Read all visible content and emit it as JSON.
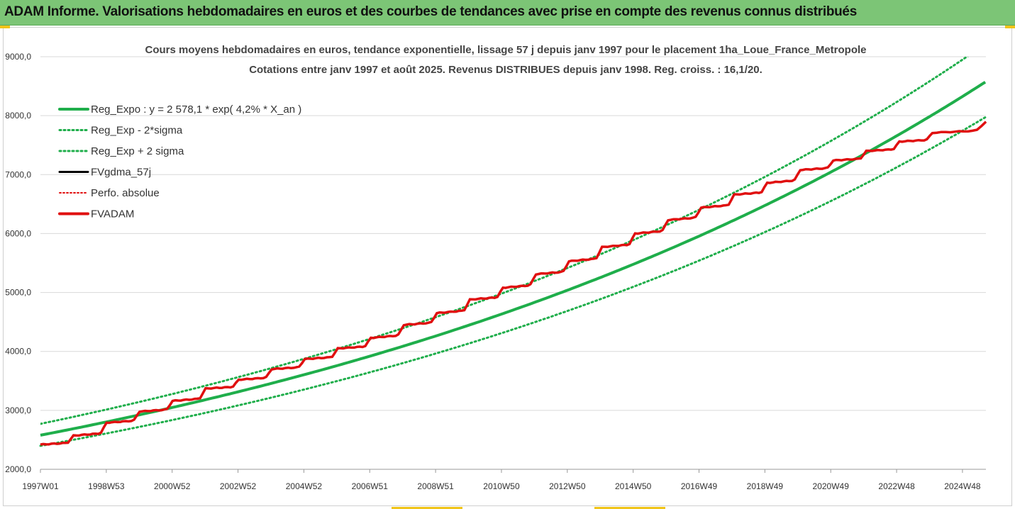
{
  "banner": {
    "title": "ADAM Informe. Valorisations hebdomadaires en euros et des courbes de tendances avec prise en compte des revenus connus distribués"
  },
  "colors": {
    "banner": "#7cc576",
    "regression": "#1fae4b",
    "fvgdma": "#000000",
    "perfo": "#e01010",
    "fvadam": "#e01010"
  },
  "chart_data": {
    "type": "line",
    "title": "Cours moyens hebdomadaires en euros, tendance exponentielle, lissage 57 j depuis janv 1997 pour le placement 1ha_Loue_France_Metropole",
    "subtitle": "Cotations entre janv 1997 et août 2025. Revenus DISTRIBUES depuis janv 1998. Reg. croiss. : 16,1/20.",
    "xlabel": "",
    "ylabel": "",
    "ylim": [
      2000,
      9000
    ],
    "yticks": [
      "2000,0",
      "3000,0",
      "4000,0",
      "5000,0",
      "6000,0",
      "7000,0",
      "8000,0",
      "9000,0"
    ],
    "xticks": [
      "1997W01",
      "1998W53",
      "2000W52",
      "2002W52",
      "2004W52",
      "2006W51",
      "2008W51",
      "2010W50",
      "2012W50",
      "2014W50",
      "2016W49",
      "2018W49",
      "2020W49",
      "2022W48",
      "2024W48"
    ],
    "x_range": [
      1997.0,
      2025.62
    ],
    "grid": true,
    "legend_position": "top-left",
    "regression": {
      "a": 2578.1,
      "rate": 0.042,
      "sigma_factor": 1.075
    },
    "series": [
      {
        "name": "Reg_Expo : y = 2 578,1 * exp( 4,2% *  X_an )",
        "style": "solid-green"
      },
      {
        "name": "Reg_Exp - 2*sigma",
        "style": "dotted-green"
      },
      {
        "name": "Reg_Exp + 2 sigma",
        "style": "dotted-green"
      },
      {
        "name": "FVgdma_57j",
        "style": "solid-black"
      },
      {
        "name": "Perfo. absolue",
        "style": "dotted-red"
      },
      {
        "name": "FVADAM",
        "style": "solid-red",
        "x": [
          1997.0,
          1998.0,
          1999.0,
          2000.0,
          2001.0,
          2002.0,
          2003.0,
          2004.0,
          2005.0,
          2006.0,
          2007.0,
          2008.0,
          2009.0,
          2010.0,
          2011.0,
          2012.0,
          2013.0,
          2014.0,
          2015.0,
          2016.0,
          2017.0,
          2018.0,
          2019.0,
          2020.0,
          2021.0,
          2022.0,
          2023.0,
          2024.0,
          2025.62
        ],
        "values": [
          2420,
          2570,
          2790,
          2980,
          3160,
          3370,
          3520,
          3700,
          3870,
          4050,
          4230,
          4450,
          4650,
          4880,
          5080,
          5310,
          5530,
          5770,
          6000,
          6230,
          6440,
          6660,
          6860,
          7080,
          7240,
          7400,
          7560,
          7710,
          7900
        ]
      }
    ]
  }
}
